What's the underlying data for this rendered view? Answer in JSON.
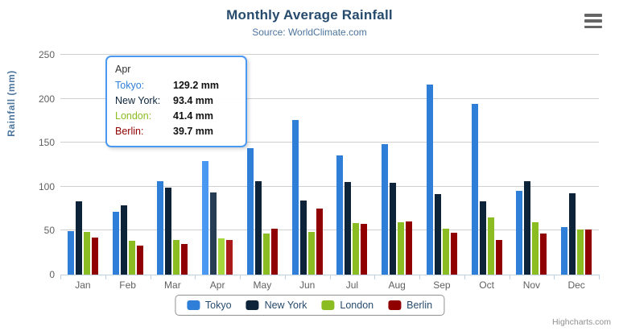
{
  "chart": {
    "title": "Monthly Average Rainfall",
    "subtitle": "Source: WorldClimate.com",
    "y_axis_title": "Rainfall (mm)",
    "credits": "Highcharts.com"
  },
  "chart_data": {
    "type": "bar",
    "title": "Monthly Average Rainfall",
    "subtitle": "Source: WorldClimate.com",
    "xlabel": "",
    "ylabel": "Rainfall (mm)",
    "ylim": [
      0,
      250
    ],
    "y_ticks": [
      0,
      50,
      100,
      150,
      200,
      250
    ],
    "grid": true,
    "legend_position": "bottom",
    "hovered_category": "Apr",
    "categories": [
      "Jan",
      "Feb",
      "Mar",
      "Apr",
      "May",
      "Jun",
      "Jul",
      "Aug",
      "Sep",
      "Oct",
      "Nov",
      "Dec"
    ],
    "series": [
      {
        "name": "Tokyo",
        "color": "#2f7ed8",
        "values": [
          49.9,
          71.5,
          106.4,
          129.2,
          144.0,
          176.0,
          135.6,
          148.5,
          216.4,
          194.1,
          95.6,
          54.4
        ]
      },
      {
        "name": "New York",
        "color": "#0d233a",
        "values": [
          83.6,
          78.8,
          98.5,
          93.4,
          106.0,
          84.5,
          105.0,
          104.3,
          91.2,
          83.5,
          106.6,
          92.3
        ]
      },
      {
        "name": "London",
        "color": "#8bbc21",
        "values": [
          48.9,
          38.8,
          39.3,
          41.4,
          47.0,
          48.3,
          59.0,
          59.6,
          52.4,
          65.2,
          59.3,
          51.2
        ]
      },
      {
        "name": "Berlin",
        "color": "#910000",
        "values": [
          42.4,
          33.2,
          34.5,
          39.7,
          52.6,
          75.5,
          57.4,
          60.4,
          47.6,
          39.1,
          46.8,
          51.1
        ]
      }
    ]
  },
  "tooltip": {
    "header": "Apr",
    "rows": [
      {
        "label": "Tokyo:",
        "value": "129.2 mm",
        "color": "#2f7ed8"
      },
      {
        "label": "New York:",
        "value": "93.4 mm",
        "color": "#0d233a"
      },
      {
        "label": "London:",
        "value": "41.4 mm",
        "color": "#8bbc21"
      },
      {
        "label": "Berlin:",
        "value": "39.7 mm",
        "color": "#910000"
      }
    ]
  },
  "legend": {
    "items": [
      {
        "label": "Tokyo",
        "color": "#2f7ed8"
      },
      {
        "label": "New York",
        "color": "#0d233a"
      },
      {
        "label": "London",
        "color": "#8bbc21"
      },
      {
        "label": "Berlin",
        "color": "#910000"
      }
    ]
  }
}
